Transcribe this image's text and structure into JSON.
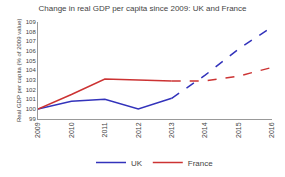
{
  "chart_data": {
    "type": "line",
    "title": "Change in real GDP per capita since 2009: UK and France",
    "y_label": "Real GDP per capita (% of 2009 value)",
    "x": [
      2009,
      2010,
      2011,
      2012,
      2013,
      2014,
      2015,
      2016
    ],
    "series": [
      {
        "name": "UK",
        "color": "#3333bb",
        "line_style": "solid",
        "values": [
          100.0,
          100.8,
          101.0,
          100.0,
          101.1,
          null,
          null,
          null
        ]
      },
      {
        "name": "UK",
        "color": "#3333bb",
        "line_style": "dashed",
        "values": [
          null,
          null,
          null,
          null,
          101.1,
          103.5,
          106.2,
          108.5
        ]
      },
      {
        "name": "France",
        "color": "#cc3333",
        "line_style": "solid",
        "values": [
          100.0,
          101.5,
          103.1,
          103.0,
          102.9,
          null,
          null,
          null
        ]
      },
      {
        "name": "France",
        "color": "#cc3333",
        "line_style": "dashed",
        "values": [
          null,
          null,
          null,
          null,
          102.9,
          102.9,
          103.4,
          104.3
        ]
      }
    ],
    "xlim": [
      2009,
      2016
    ],
    "xticks": [
      2009,
      2010,
      2011,
      2012,
      2013,
      2014,
      2015,
      2016
    ],
    "ylim": [
      99,
      109
    ],
    "yticks": [
      99,
      100,
      101,
      102,
      103,
      104,
      105,
      106,
      107,
      108,
      109
    ],
    "grid": false,
    "legend": "bottom"
  }
}
